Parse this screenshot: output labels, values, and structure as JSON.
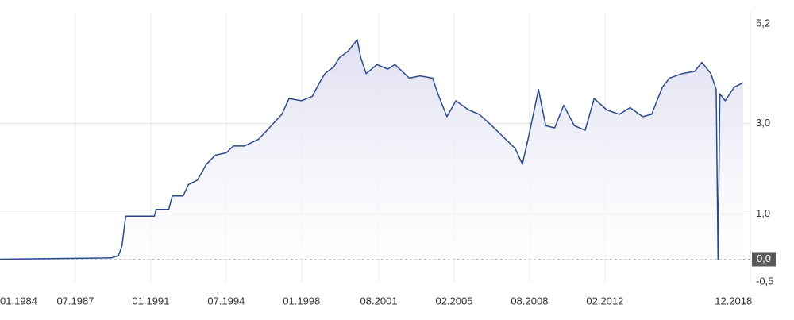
{
  "chart_data": {
    "type": "line",
    "x": [
      "1984-01",
      "1987-07",
      "1989-03",
      "1989-07",
      "1989-09",
      "1989-11",
      "1991-03",
      "1991-04",
      "1991-11",
      "1992-01",
      "1992-07",
      "1992-10",
      "1993-03",
      "1993-08",
      "1994-01",
      "1994-07",
      "1994-11",
      "1995-05",
      "1996-01",
      "1996-07",
      "1997-02",
      "1997-06",
      "1998-01",
      "1998-07",
      "1998-11",
      "1999-02",
      "1999-07",
      "1999-10",
      "2000-03",
      "2000-08",
      "2000-10",
      "2001-01",
      "2001-07",
      "2002-01",
      "2002-05",
      "2003-01",
      "2003-07",
      "2004-02",
      "2004-05",
      "2004-10",
      "2005-03",
      "2005-10",
      "2006-04",
      "2006-11",
      "2007-08",
      "2007-12",
      "2008-04",
      "2008-08",
      "2009-01",
      "2009-05",
      "2009-10",
      "2010-03",
      "2010-09",
      "2011-03",
      "2011-08",
      "2012-03",
      "2012-10",
      "2013-04",
      "2013-11",
      "2014-04",
      "2014-10",
      "2015-02",
      "2015-09",
      "2016-04",
      "2016-08",
      "2017-01",
      "2017-04",
      "2017-05",
      "2017-06",
      "2017-09",
      "2018-02",
      "2018-07"
    ],
    "series": [
      {
        "color": "#2b4a8b",
        "values": [
          0,
          0.02,
          0.03,
          0.08,
          0.3,
          0.95,
          0.95,
          1.1,
          1.1,
          1.4,
          1.4,
          1.65,
          1.75,
          2.1,
          2.3,
          2.35,
          2.5,
          2.5,
          2.65,
          2.9,
          3.2,
          3.55,
          3.5,
          3.6,
          3.9,
          4.1,
          4.25,
          4.45,
          4.6,
          4.85,
          4.45,
          4.1,
          4.3,
          4.2,
          4.3,
          4.0,
          4.05,
          4.0,
          3.65,
          3.15,
          3.5,
          3.3,
          3.2,
          2.95,
          2.6,
          2.45,
          2.1,
          2.8,
          3.75,
          2.95,
          2.9,
          3.4,
          2.95,
          2.85,
          3.55,
          3.3,
          3.2,
          3.35,
          3.15,
          3.2,
          3.8,
          4.0,
          4.1,
          4.15,
          4.35,
          4.1,
          3.75,
          0.0,
          3.65,
          3.5,
          3.8,
          3.9
        ]
      }
    ],
    "xlim": [
      "1984-01",
      "2018-11"
    ],
    "xticks": [
      {
        "value": "1984-01",
        "label": "01.1984"
      },
      {
        "value": "1987-07",
        "label": "07.1987"
      },
      {
        "value": "1991-01",
        "label": "01.1991"
      },
      {
        "value": "1994-07",
        "label": "07.1994"
      },
      {
        "value": "1998-01",
        "label": "01.1998"
      },
      {
        "value": "2001-08",
        "label": "08.2001"
      },
      {
        "value": "2005-02",
        "label": "02.2005"
      },
      {
        "value": "2008-08",
        "label": "08.2008"
      },
      {
        "value": "2012-02",
        "label": "02.2012"
      },
      {
        "value": "2018-12",
        "label": "12.2018"
      }
    ],
    "ylim": [
      -0.5,
      5.2
    ],
    "yticks": [
      {
        "value": -0.5,
        "label": "-0,5"
      },
      {
        "value": 0,
        "label": "0,0"
      },
      {
        "value": 1,
        "label": "1,0"
      },
      {
        "value": 3,
        "label": "3,0"
      },
      {
        "value": 5.2,
        "label": "5,2"
      }
    ],
    "grid": true
  }
}
